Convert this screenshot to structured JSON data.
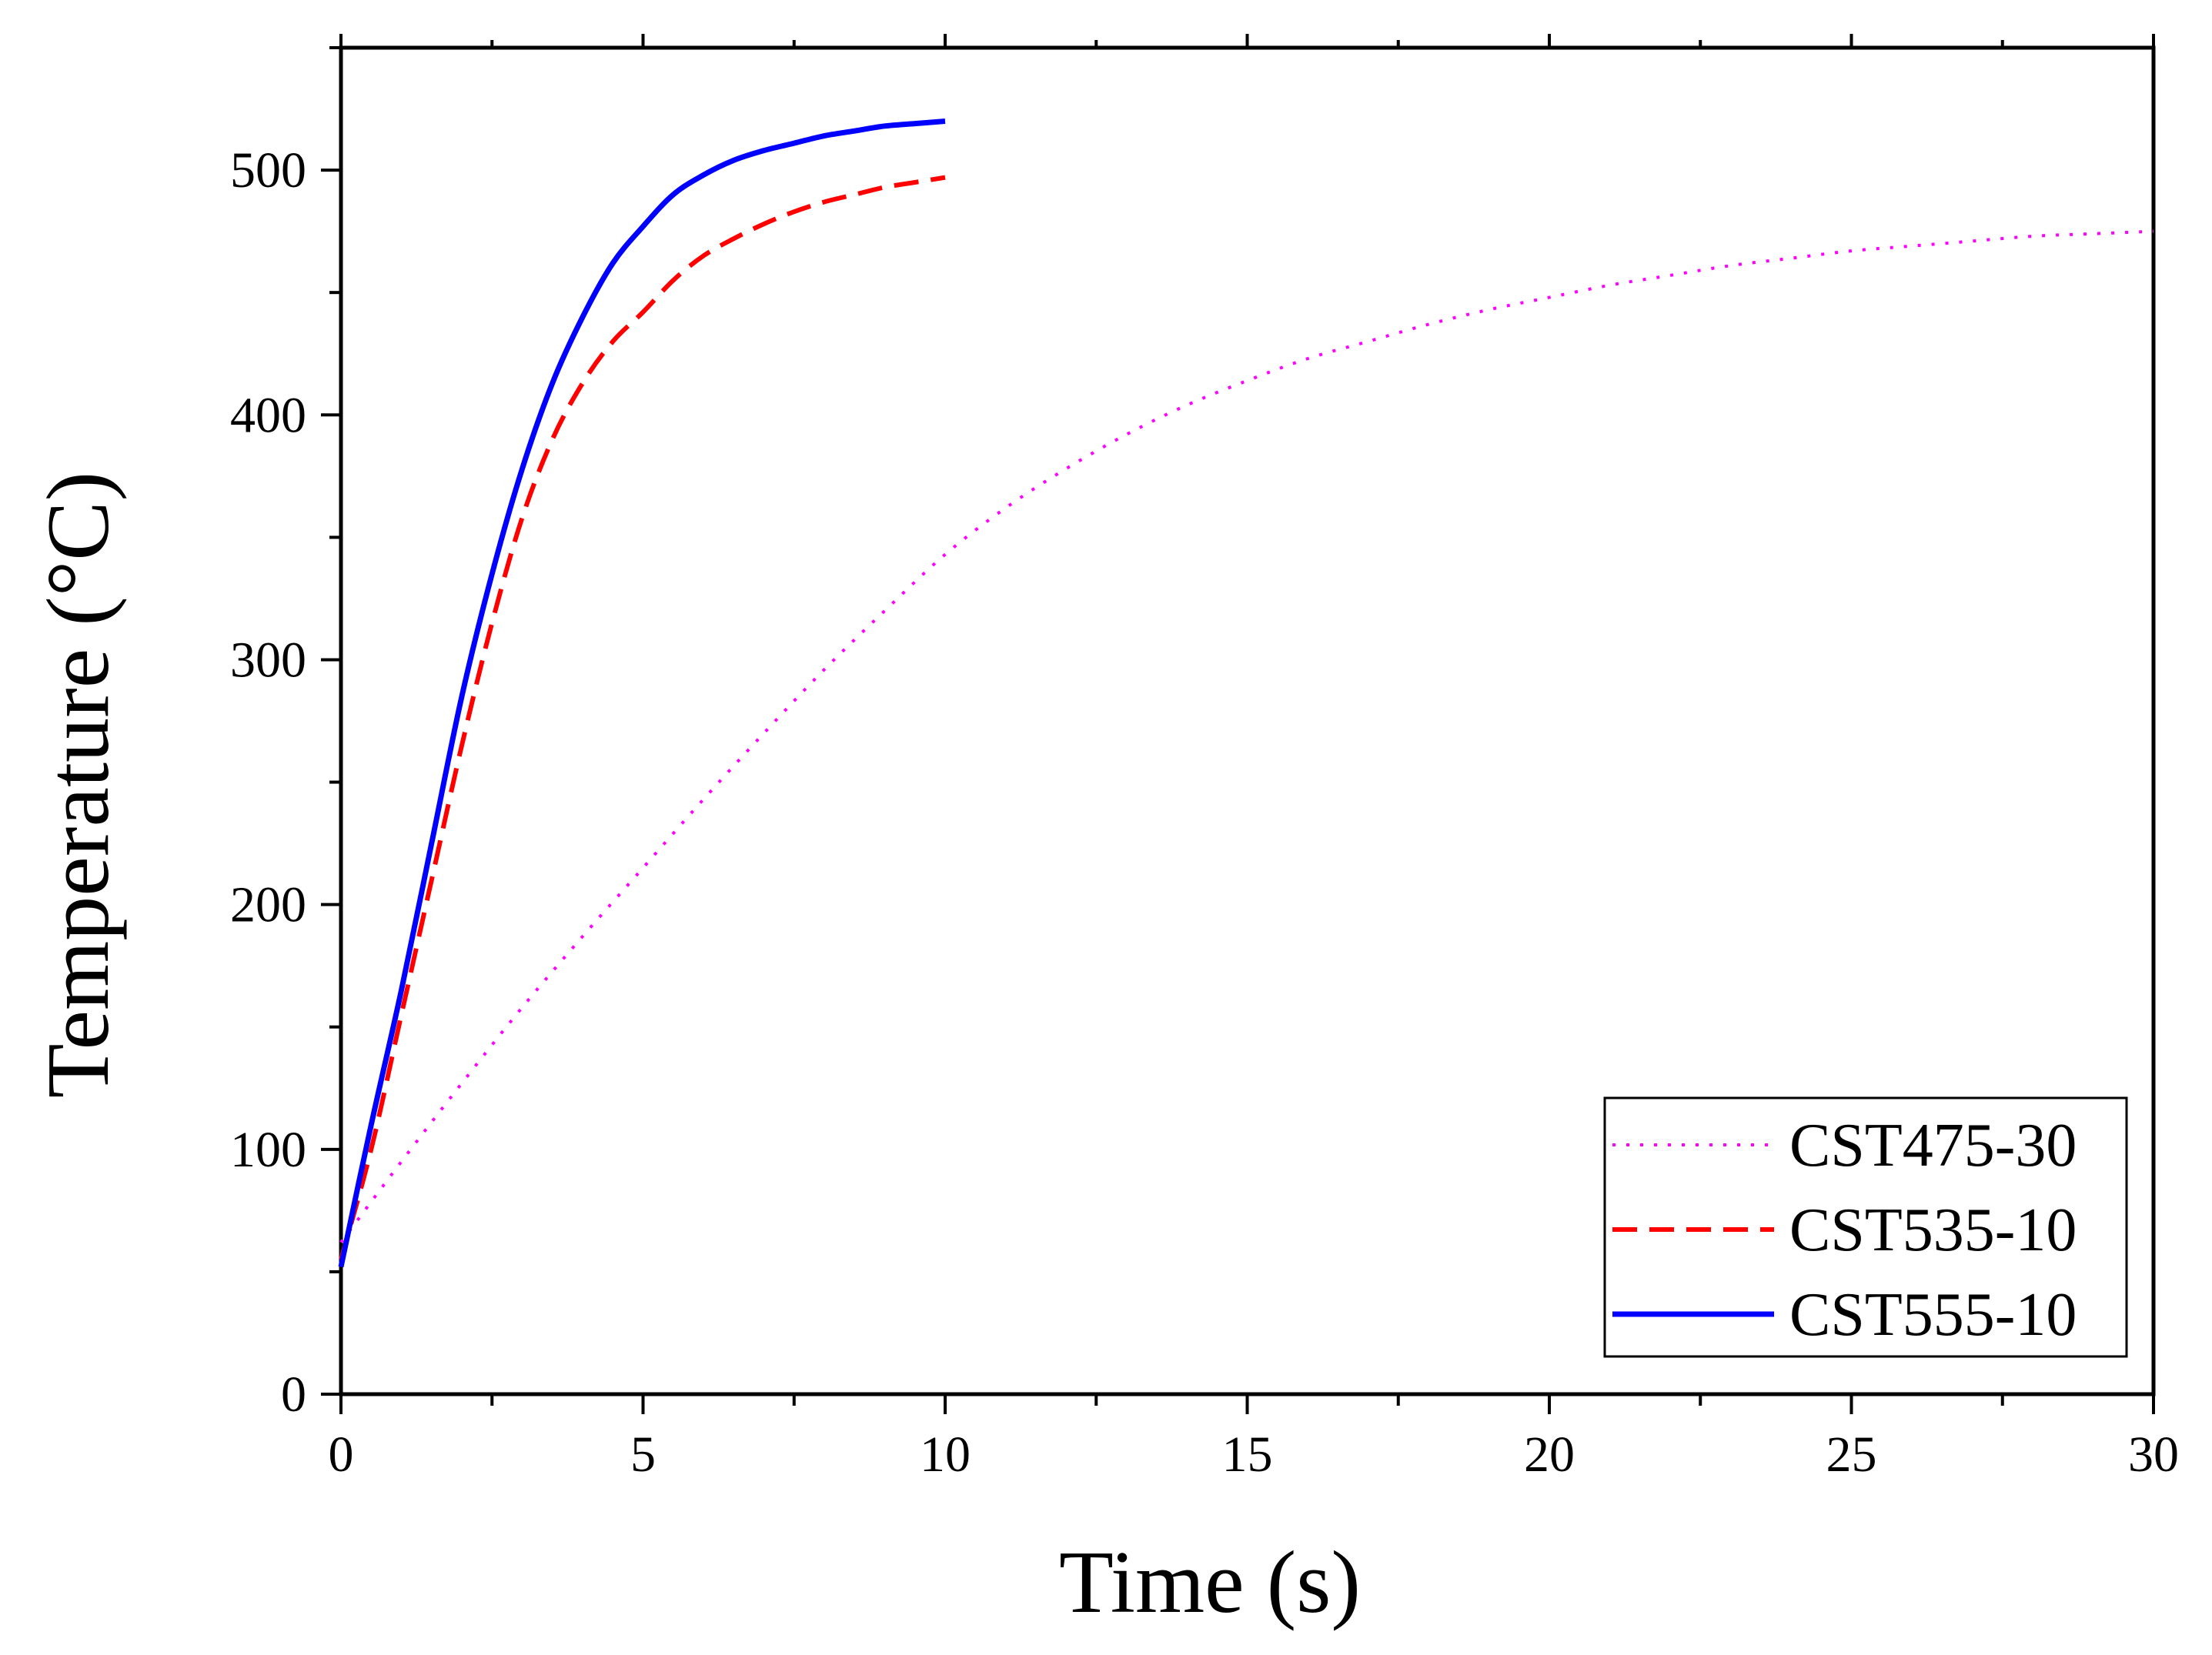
{
  "chart_data": {
    "type": "line",
    "title": "",
    "xlabel": "Time (s)",
    "ylabel": "Temperature  (°C)",
    "xlim": [
      0,
      30
    ],
    "ylim": [
      0,
      550
    ],
    "xticks": [
      0,
      5,
      10,
      15,
      20,
      25,
      30
    ],
    "yticks": [
      0,
      100,
      200,
      300,
      400,
      500
    ],
    "xtick_labels": [
      "0",
      "5",
      "10",
      "15",
      "20",
      "25",
      "30"
    ],
    "ytick_labels": [
      "0",
      "100",
      "200",
      "300",
      "400",
      "500"
    ],
    "grid": false,
    "legend_position": "bottom-right",
    "series": [
      {
        "name": "CST475-30",
        "color": "#ff00ff",
        "style": "dotted",
        "x": [
          0,
          1,
          2,
          3,
          4,
          5,
          6,
          7,
          8,
          9,
          10,
          11,
          12,
          13,
          14,
          15,
          16,
          17,
          18,
          19,
          20,
          21,
          22,
          23,
          24,
          25,
          26,
          27,
          28,
          29,
          30
        ],
        "values": [
          62,
          95,
          127,
          158,
          187,
          215,
          243,
          270,
          296,
          320,
          343,
          362,
          378,
          392,
          404,
          414,
          423,
          430,
          437,
          443,
          448,
          453,
          457,
          461,
          464,
          467,
          469,
          471,
          473,
          474,
          475
        ]
      },
      {
        "name": "CST535-10",
        "color": "#ff0000",
        "style": "dashed",
        "x": [
          0,
          0.5,
          1,
          1.5,
          2,
          2.5,
          3,
          3.5,
          4,
          4.5,
          5,
          5.5,
          6,
          6.5,
          7,
          7.5,
          8,
          8.5,
          9,
          9.5,
          10
        ],
        "values": [
          55,
          100,
          155,
          210,
          265,
          315,
          358,
          390,
          413,
          430,
          442,
          455,
          465,
          472,
          478,
          483,
          487,
          490,
          493,
          495,
          497
        ]
      },
      {
        "name": "CST555-10",
        "color": "#0000ff",
        "style": "solid",
        "x": [
          0,
          0.5,
          1,
          1.5,
          2,
          2.5,
          3,
          3.5,
          4,
          4.5,
          5,
          5.5,
          6,
          6.5,
          7,
          7.5,
          8,
          8.5,
          9,
          9.5,
          10
        ],
        "values": [
          52,
          110,
          165,
          225,
          285,
          335,
          378,
          413,
          440,
          462,
          477,
          490,
          498,
          504,
          508,
          511,
          514,
          516,
          518,
          519,
          520
        ]
      }
    ]
  }
}
